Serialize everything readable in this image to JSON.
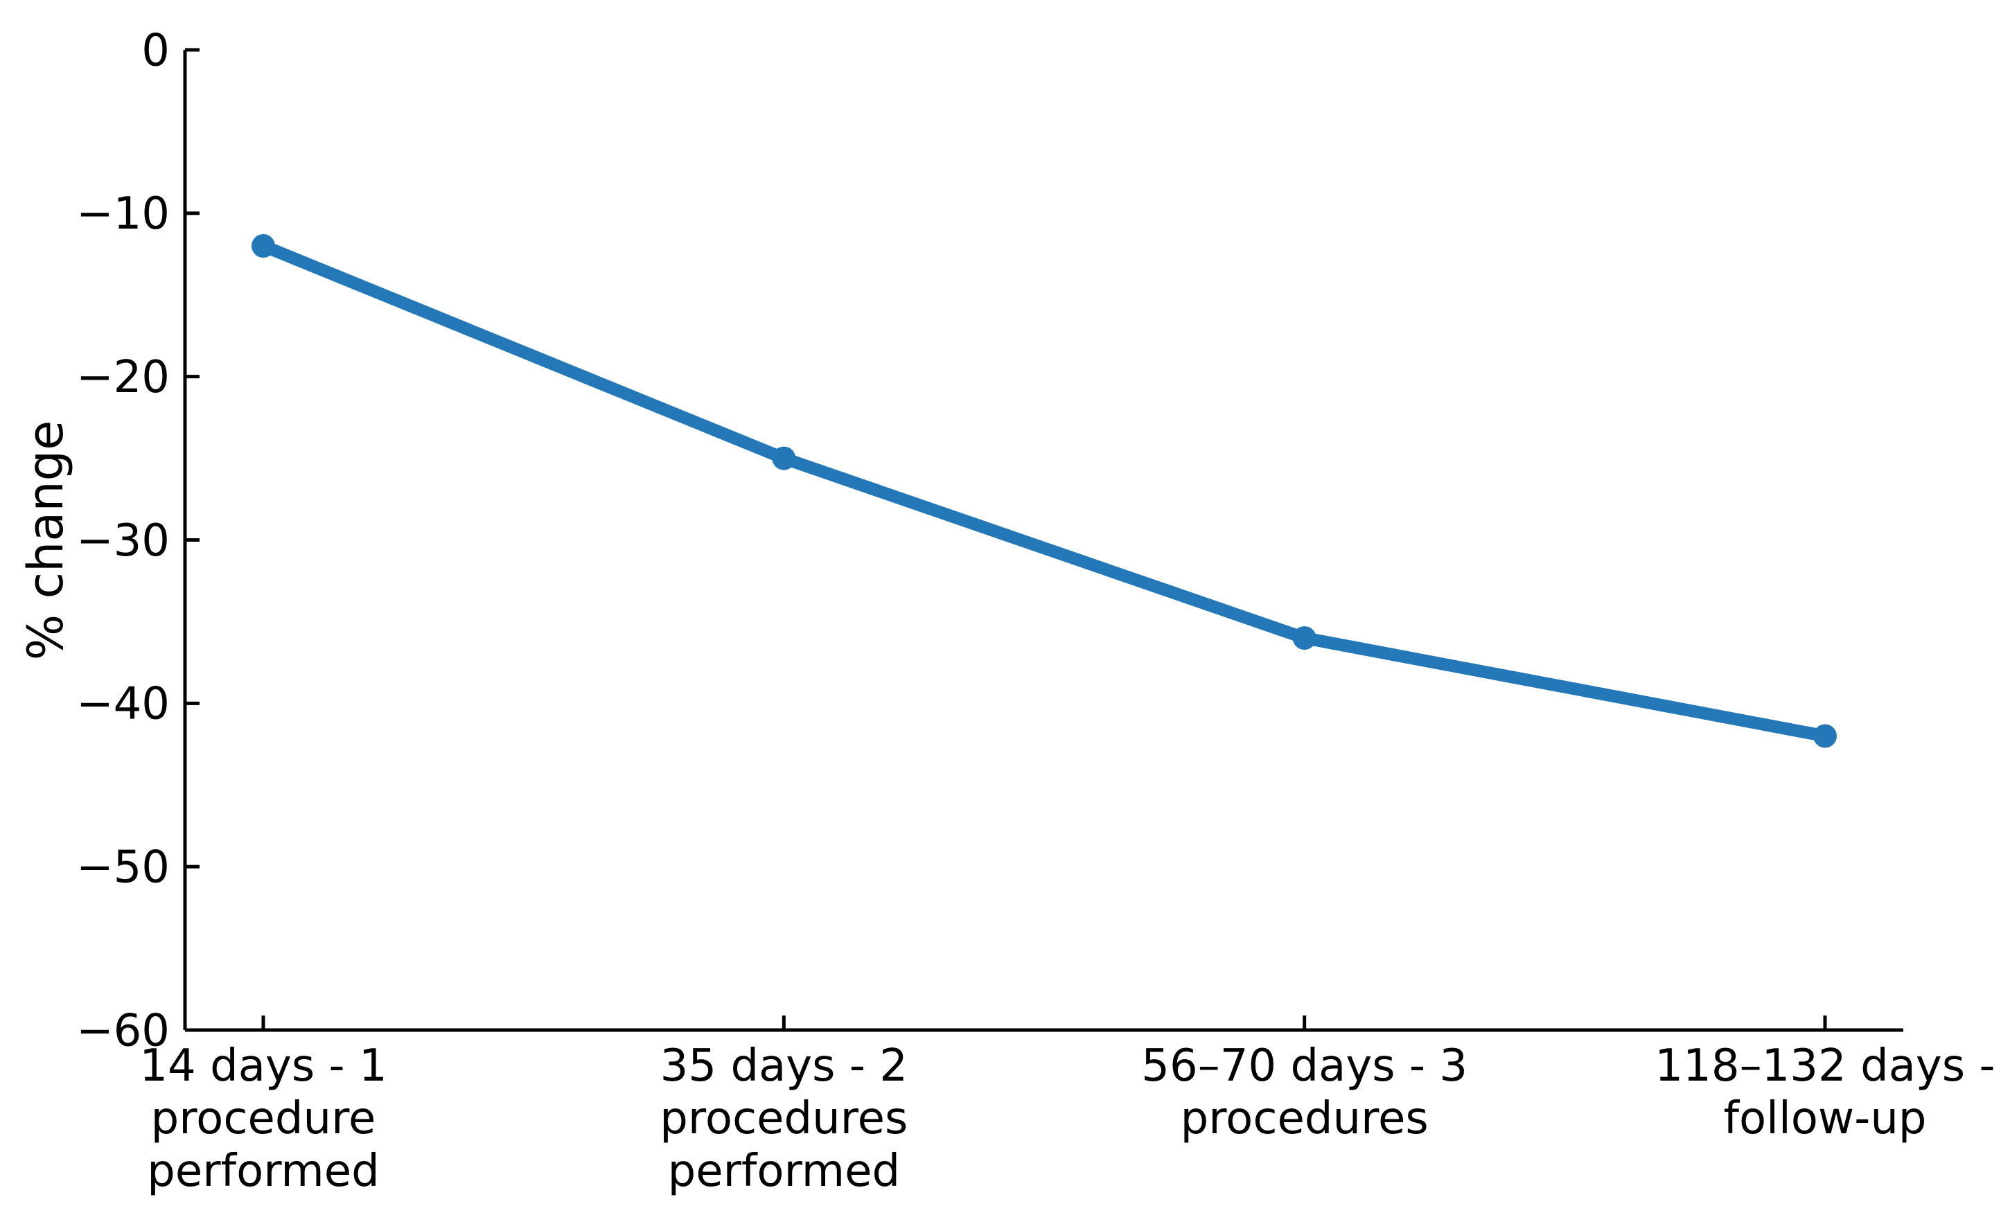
{
  "chart_data": {
    "type": "line",
    "title": "",
    "xlabel": "",
    "ylabel": "% change",
    "categories": [
      "14 days - 1 procedure performed",
      "35 days - 2 procedures performed",
      "56–70 days - 3 procedures",
      "118–132 days - follow-up"
    ],
    "xticklabels_lines": [
      [
        "14 days - 1",
        "procedure",
        "performed"
      ],
      [
        "35 days - 2",
        "procedures",
        "performed"
      ],
      [
        "56–70 days - 3",
        "procedures"
      ],
      [
        "118–132 days -",
        "follow-up"
      ]
    ],
    "series": [
      {
        "values": [
          -12,
          -25,
          -36,
          -42
        ]
      }
    ],
    "ylim": [
      -60,
      0
    ],
    "yticks": [
      0,
      -10,
      -20,
      -30,
      -40,
      -50,
      -60
    ],
    "yticklabels": [
      "0",
      "−10",
      "−20",
      "−30",
      "−40",
      "−50",
      "−60"
    ],
    "grid": false,
    "legend": "none",
    "line_color": "#2478b8",
    "axis_color": "#000000",
    "text_color": "#000000"
  }
}
